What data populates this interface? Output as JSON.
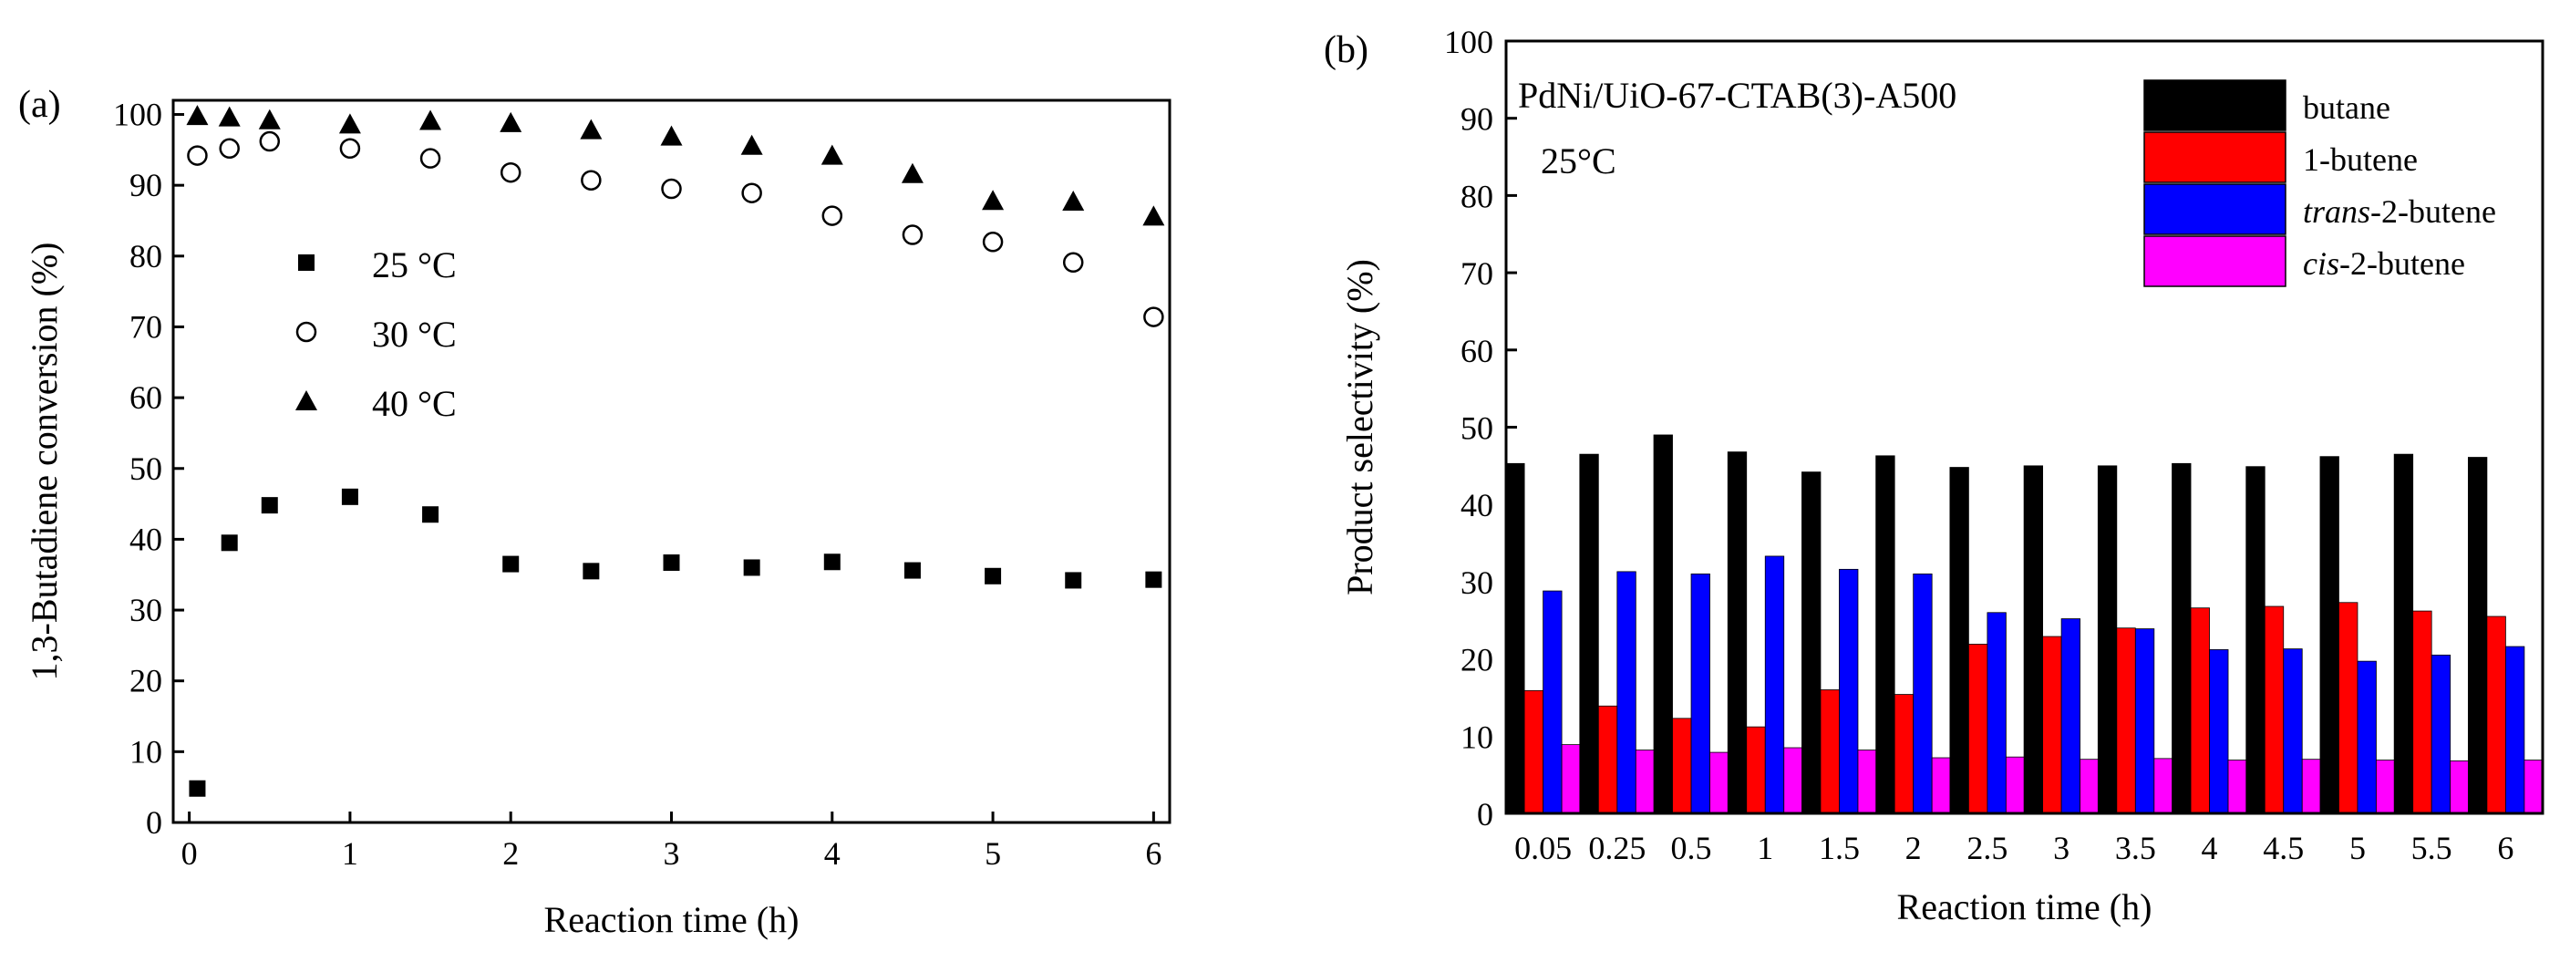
{
  "chart_data": [
    {
      "type": "scatter",
      "panel_label": "(a)",
      "title": "",
      "xlabel": "Reaction time (h)",
      "ylabel": "1,3-Butadiene conversion (%)",
      "xlim": [
        -0.1,
        6.1
      ],
      "ylim": [
        0,
        102
      ],
      "xticks": [
        0,
        1,
        2,
        3,
        4,
        5,
        6
      ],
      "yticks": [
        0,
        10,
        20,
        30,
        40,
        50,
        60,
        70,
        80,
        90,
        100
      ],
      "x": [
        0.05,
        0.25,
        0.5,
        1,
        1.5,
        2,
        2.5,
        3,
        3.5,
        4,
        4.5,
        5,
        5.5,
        6
      ],
      "series": [
        {
          "name": "25 °C",
          "marker": "square-filled",
          "color": "#000000",
          "values": [
            4.8,
            39.5,
            44.8,
            46.0,
            43.5,
            36.5,
            35.5,
            36.7,
            36.0,
            36.8,
            35.6,
            34.8,
            34.2,
            34.3
          ]
        },
        {
          "name": "30 °C",
          "marker": "circle-open",
          "color": "#000000",
          "values": [
            94.2,
            95.2,
            96.2,
            95.2,
            93.8,
            91.8,
            90.7,
            89.5,
            88.9,
            85.7,
            83.0,
            82.0,
            79.1,
            71.4
          ]
        },
        {
          "name": "40 °C",
          "marker": "triangle-filled",
          "color": "#000000",
          "values": [
            99.8,
            99.6,
            99.2,
            98.6,
            99.1,
            98.8,
            97.8,
            96.9,
            95.6,
            94.2,
            91.6,
            87.8,
            87.7,
            85.6
          ]
        }
      ],
      "legend_position": "left-middle"
    },
    {
      "type": "bar",
      "panel_label": "(b)",
      "title": "",
      "xlabel": "Reaction time (h)",
      "ylabel": "Product selectivity (%)",
      "ylim": [
        0,
        100
      ],
      "yticks": [
        0,
        10,
        20,
        30,
        40,
        50,
        60,
        70,
        80,
        90,
        100
      ],
      "categories": [
        "0.05",
        "0.25",
        "0.5",
        "1",
        "1.5",
        "2",
        "2.5",
        "3",
        "3.5",
        "4",
        "4.5",
        "5",
        "5.5",
        "6"
      ],
      "annotations": [
        "PdNi/UiO-67-CTAB(3)-A500",
        "25°C"
      ],
      "series": [
        {
          "name": "butane",
          "name_prefix": "",
          "name_suffix": "butane",
          "color": "#000000",
          "values": [
            45.3,
            46.5,
            49.0,
            46.8,
            44.2,
            46.3,
            44.8,
            45.0,
            45.0,
            45.3,
            44.9,
            46.2,
            46.5,
            46.1
          ]
        },
        {
          "name": "1-butene",
          "name_prefix": "",
          "name_suffix": "1-butene",
          "color": "#ff0000",
          "values": [
            15.9,
            13.9,
            12.3,
            11.2,
            16.0,
            15.4,
            21.9,
            22.9,
            24.0,
            26.6,
            26.8,
            27.3,
            26.2,
            25.5
          ]
        },
        {
          "name": "trans-2-butene",
          "name_prefix": "trans",
          "name_suffix": "-2-butene",
          "color": "#0000ff",
          "values": [
            28.8,
            31.3,
            31.0,
            33.3,
            31.6,
            31.0,
            26.0,
            25.2,
            23.9,
            21.2,
            21.3,
            19.7,
            20.5,
            21.6
          ]
        },
        {
          "name": "cis-2-butene",
          "name_prefix": "cis",
          "name_suffix": "-2-butene",
          "color": "#ff00ff",
          "values": [
            8.9,
            8.2,
            7.9,
            8.5,
            8.2,
            7.2,
            7.3,
            7.0,
            7.1,
            6.9,
            7.0,
            6.9,
            6.8,
            6.9
          ]
        }
      ],
      "legend_position": "top-right"
    }
  ]
}
